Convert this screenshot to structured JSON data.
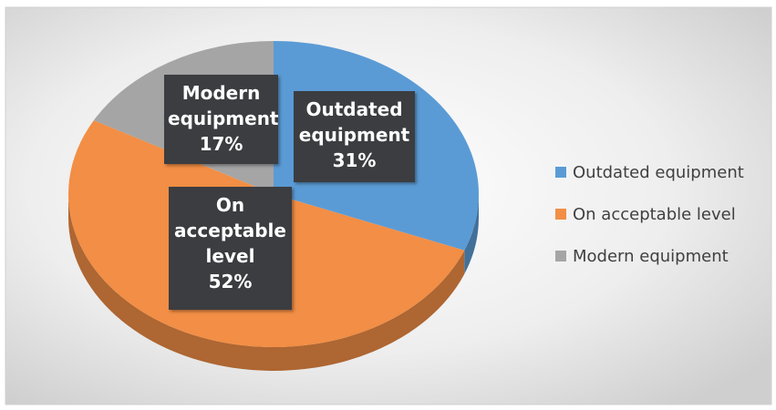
{
  "chart_data": {
    "type": "pie",
    "categories": [
      "Outdated equipment",
      "On acceptable level",
      "Modern equipment"
    ],
    "values": [
      31,
      52,
      17
    ],
    "value_labels": [
      "31%",
      "52%",
      "17%"
    ],
    "colors": [
      "#5b9bd5",
      "#f28e45",
      "#a5a5a5"
    ],
    "legend": "right"
  }
}
